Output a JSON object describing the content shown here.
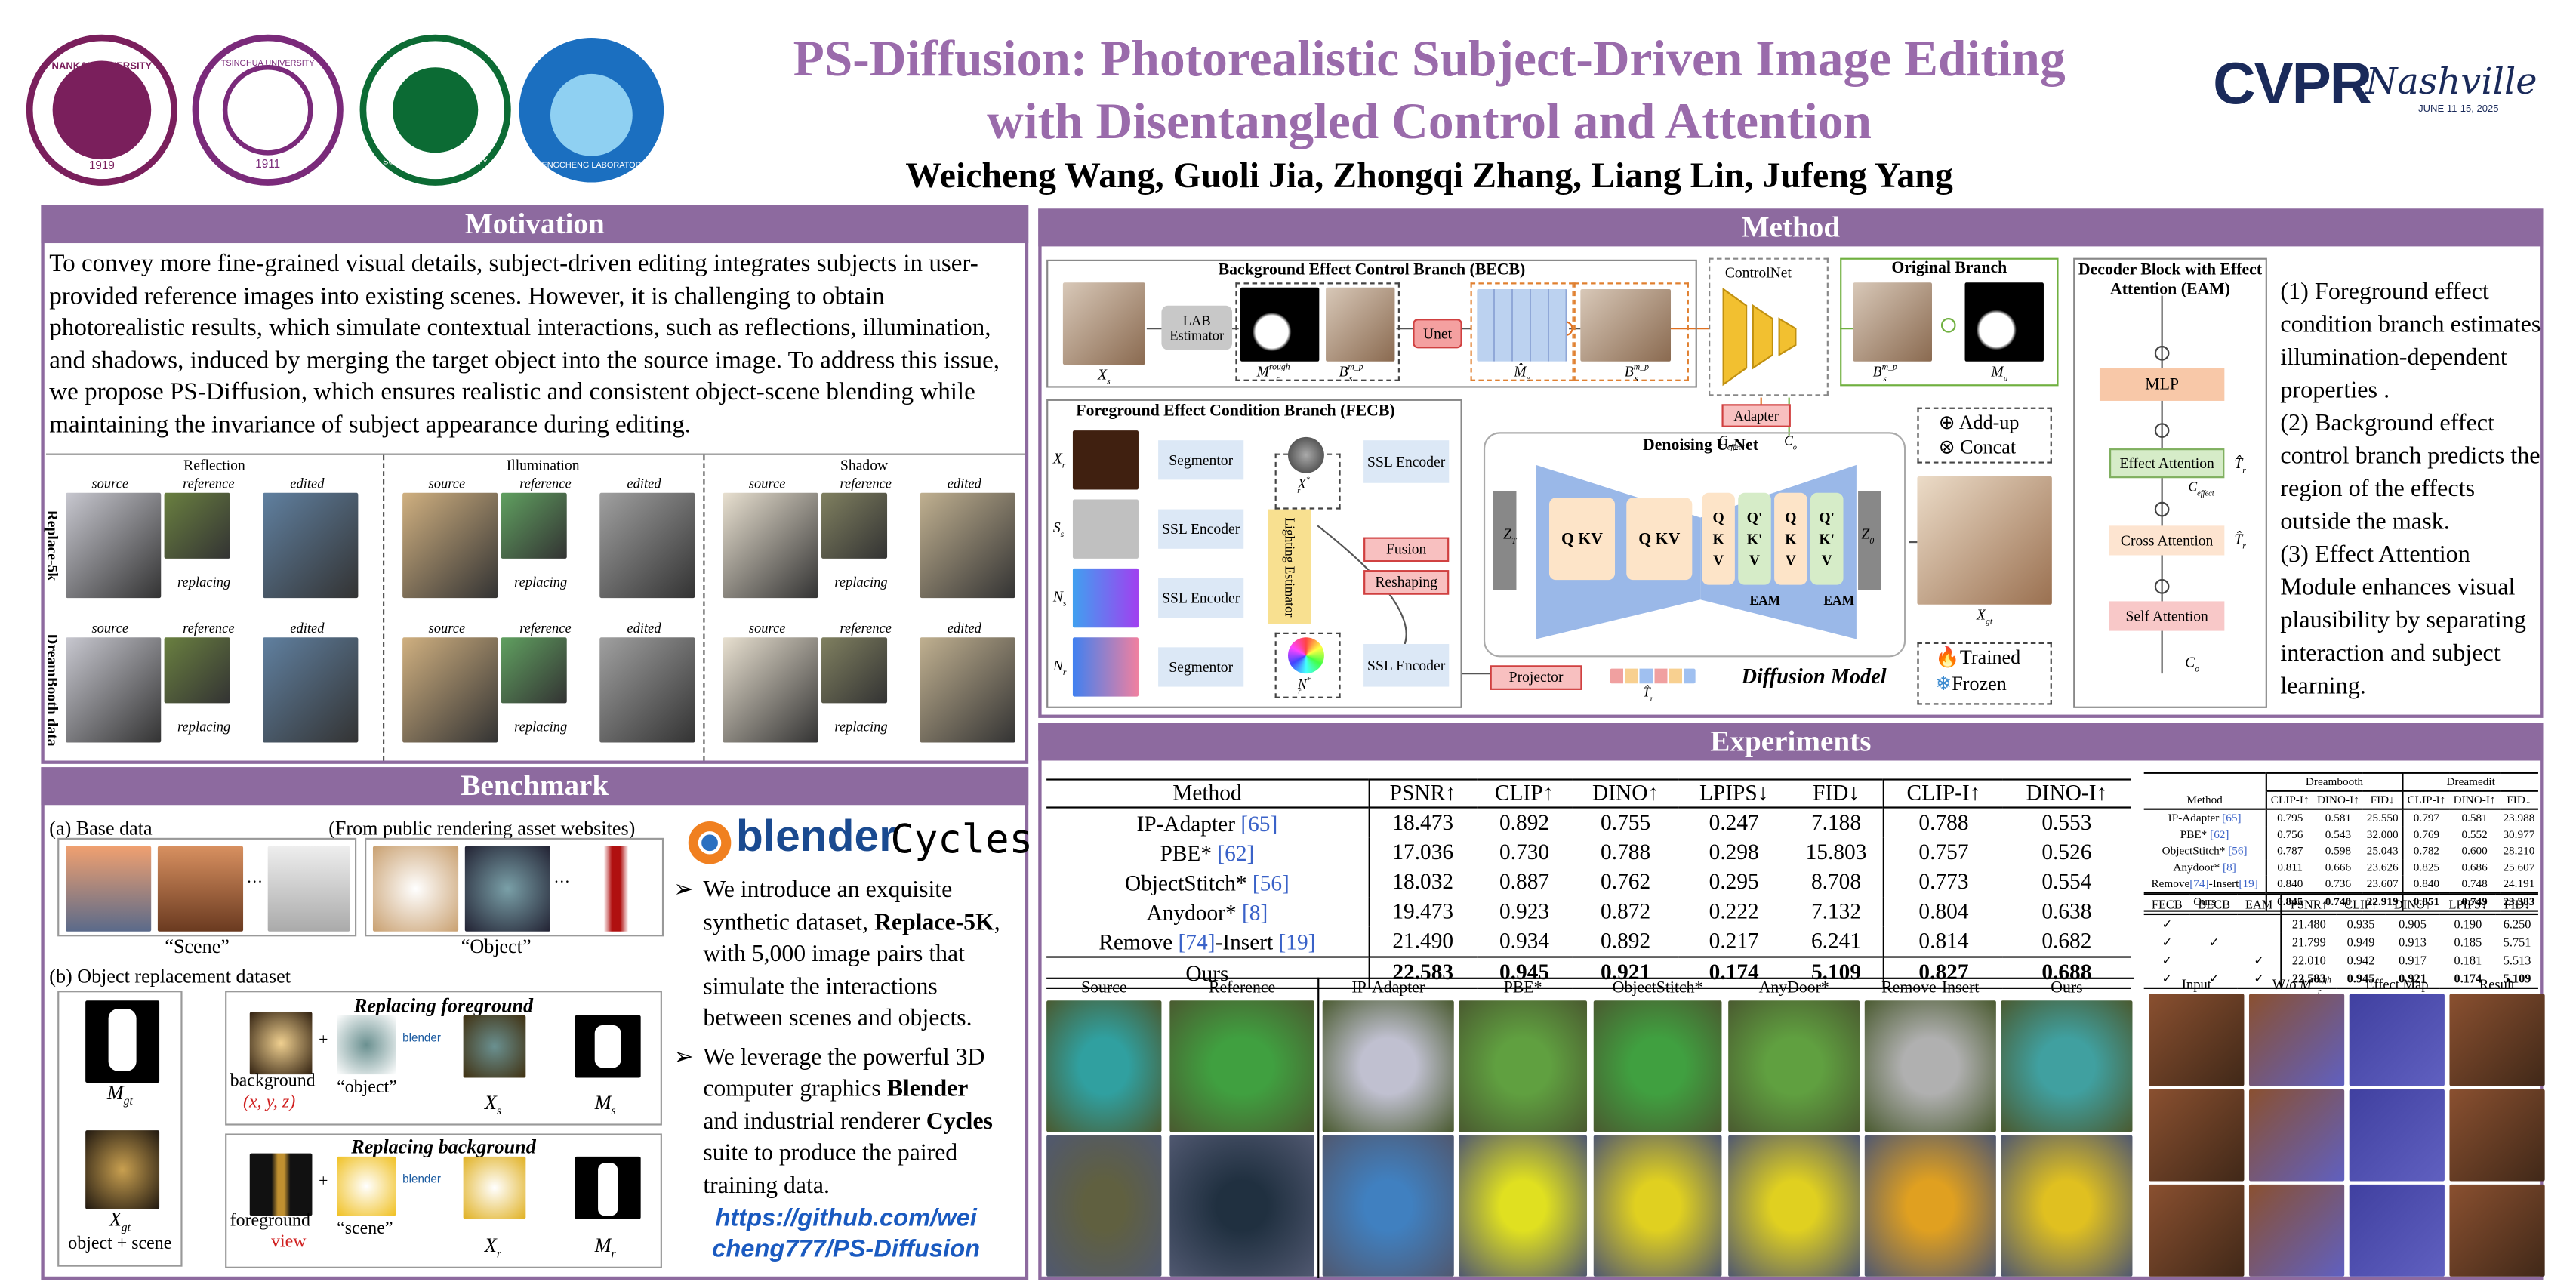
{
  "header": {
    "title_line1": "PS-Diffusion: Photorealistic Subject-Driven Image Editing",
    "title_line2": "with Disentangled Control and Attention",
    "authors": "Weicheng Wang, Guoli Jia, Zhongqi Zhang, Liang Lin, Jufeng Yang",
    "logos": [
      {
        "name": "NANKAI UNIVERSITY",
        "year": "1919"
      },
      {
        "name": "TSINGHUA UNIVERSITY",
        "year": "1911"
      },
      {
        "name": "SUN YAT-SEN UNIVERSITY"
      },
      {
        "name": "PENGCHENG LABORATORY"
      }
    ],
    "conference": {
      "name": "CVPR",
      "city": "Nashville",
      "dates": "JUNE 11-15, 2025"
    }
  },
  "motivation": {
    "heading": "Motivation",
    "text": "To convey more fine-grained visual details, subject-driven editing integrates subjects in user-provided reference images into existing scenes. However, it is challenging to obtain photorealistic results, which simulate contextual interactions, such as reflections, illumination, and shadows, induced by merging the target object into the source image. To address this issue, we propose PS-Diffusion, which ensures realistic and consistent object-scene blending while maintaining the invariance of subject appearance during editing.",
    "figure": {
      "effects": [
        "Reflection",
        "Illumination",
        "Shadow"
      ],
      "rows": [
        "Replace-5k",
        "DreamBooth data"
      ],
      "captions": [
        "source",
        "reference",
        "edited"
      ],
      "replacing": "replacing"
    }
  },
  "benchmark": {
    "heading": "Benchmark",
    "base": "(a)  Base data",
    "base_note": "(From public rendering asset websites)",
    "scene": "“Scene”",
    "object": "“Object”",
    "dots": "···",
    "dataset": "(b)  Object replacement dataset",
    "fg_title": "Replacing foreground",
    "bg_title": "Replacing background",
    "m_gt": {
      "b": "M",
      "s": "gt"
    },
    "x_gt": {
      "b": "X",
      "s": "gt"
    },
    "object_scene": "object + scene",
    "background": "background",
    "xyz": "(x, y, z)",
    "object_q": "“object”",
    "x_s": {
      "b": "X",
      "s": "s"
    },
    "m_s": {
      "b": "M",
      "s": "s"
    },
    "foreground": "foreground",
    "view": "view",
    "scene_q": "“scene”",
    "x_r": {
      "b": "X",
      "s": "r"
    },
    "m_r": {
      "b": "M",
      "s": "r"
    },
    "blender_small": "blender",
    "plus": "+",
    "brand": "blender",
    "suite": "Cycles",
    "bullets": [
      [
        "We introduce an exquisite synthetic dataset, ",
        "Replace-5K",
        ", with 5,000 image pairs that simulate the interactions between scenes and objects."
      ],
      [
        "We leverage the powerful 3D computer graphics ",
        "Blender",
        " and industrial renderer ",
        "Cycles",
        " suite to produce the paired training data."
      ]
    ],
    "link": [
      "https://github.com/wei",
      "cheng777/PS-Diffusion"
    ]
  },
  "method": {
    "heading": "Method",
    "becb": "Background Effect Control Branch (BECB)",
    "lab": "LAB Estimator",
    "unet": "Unet",
    "controlnet": "ControlNet",
    "original": "Original Branch",
    "decoder": "Decoder Block with Effect Attention (EAM)",
    "mlp": "MLP",
    "effect_attention": "Effect Attention",
    "cross_attention": "Cross Attention",
    "self_attention": "Self Attention",
    "fecb": "Foreground Effect Condition Branch (FECB)",
    "segmentor": "Segmentor",
    "ssl": "SSL Encoder",
    "lighting": "Lighting Estimator",
    "fusion": "Fusion",
    "reshaping": "Reshaping",
    "projector": "Projector",
    "denoising": "Denoising U-Net",
    "adapter": "Adapter",
    "qkv": "Q KV",
    "qkv3": "Q K V",
    "qkv3p": "Q' K' V",
    "eam": "EAM",
    "diffusion": "Diffusion Model",
    "addup": "Add-up",
    "concat": "Concat",
    "trained": "Trained",
    "frozen": "Frozen",
    "math": {
      "xs": {
        "b": "X",
        "s": "s"
      },
      "m_rough": {
        "b": "M",
        "s": "r",
        "p": "rough"
      },
      "b_s": {
        "b": "B",
        "s": "s",
        "p": "m_p"
      },
      "m_e": {
        "b": "M̂",
        "s": "e"
      },
      "m_u": {
        "b": "M",
        "s": "u"
      },
      "x_r": {
        "b": "X",
        "s": "r"
      },
      "s_s": {
        "b": "S",
        "s": "s"
      },
      "n_s": {
        "b": "N",
        "s": "s"
      },
      "n_r": {
        "b": "N",
        "s": "r"
      },
      "x_r_star": {
        "b": "X",
        "s": "r",
        "p": "*"
      },
      "n_r_star": {
        "b": "N",
        "s": "r",
        "p": "*"
      },
      "t_r": {
        "b": "T̂",
        "s": "r"
      },
      "c_effect": {
        "b": "C",
        "s": "effect"
      },
      "c_o": {
        "b": "C",
        "s": "o"
      },
      "z_t": {
        "b": "Z",
        "s": "T"
      },
      "z_0": {
        "b": "Z",
        "s": "0"
      },
      "x_gt": {
        "b": "X",
        "s": "gt"
      }
    },
    "notes": [
      "(1) Foreground effect condition branch estimates illumination-dependent properties .",
      "(2) Background effect control branch predicts the region of the effects outside the mask.",
      "(3) Effect Attention Module enhances visual plausibility by separating interaction and subject learning."
    ]
  },
  "experiments": {
    "heading": "Experiments",
    "table": {
      "columns": [
        "Method",
        "PSNR↑",
        "CLIP↑",
        "DINO↑",
        "LPIPS↓",
        "FID↓",
        "CLIP-I↑",
        "DINO-I↑"
      ],
      "rows": [
        {
          "method": [
            "IP-Adapter ",
            "[65]"
          ],
          "values": [
            "18.473",
            "0.892",
            "0.755",
            "0.247",
            "7.188",
            "0.788",
            "0.553"
          ]
        },
        {
          "method": [
            "PBE* ",
            "[62]"
          ],
          "values": [
            "17.036",
            "0.730",
            "0.788",
            "0.298",
            "15.803",
            "0.757",
            "0.526"
          ]
        },
        {
          "method": [
            "ObjectStitch* ",
            "[56]"
          ],
          "values": [
            "18.032",
            "0.887",
            "0.762",
            "0.295",
            "8.708",
            "0.773",
            "0.554"
          ]
        },
        {
          "method": [
            "Anydoor* ",
            "[8]"
          ],
          "values": [
            "19.473",
            "0.923",
            "0.872",
            "0.222",
            "7.132",
            "0.804",
            "0.638"
          ]
        },
        {
          "method": [
            "Remove ",
            "[74]",
            "-Insert ",
            "[19]"
          ],
          "values": [
            "21.490",
            "0.934",
            "0.892",
            "0.217",
            "6.241",
            "0.814",
            "0.682"
          ]
        },
        {
          "method": [
            "Ours"
          ],
          "values": [
            "22.583",
            "0.945",
            "0.921",
            "0.174",
            "5.109",
            "0.827",
            "0.688"
          ]
        }
      ]
    },
    "comparison": [
      "Source",
      "Reference",
      "IP-Adapter",
      "PBE*",
      "ObjectStitch*",
      "AnyDoor*",
      "Remove-Insert",
      "Ours"
    ],
    "side_table": {
      "groups": [
        "Dreambooth",
        "Dreamedit"
      ],
      "columns": [
        "Method",
        "CLIP-I↑",
        "DINO-I↑",
        "FID↓",
        "CLIP-I↑",
        "DINO-I↑",
        "FID↓"
      ],
      "rows": [
        {
          "method": [
            "IP-Adapter ",
            "[65]"
          ],
          "values": [
            "0.795",
            "0.581",
            "25.550",
            "0.797",
            "0.581",
            "23.988"
          ]
        },
        {
          "method": [
            "PBE* ",
            "[62]"
          ],
          "values": [
            "0.756",
            "0.543",
            "32.000",
            "0.769",
            "0.552",
            "30.977"
          ]
        },
        {
          "method": [
            "ObjectStitch* ",
            "[56]"
          ],
          "values": [
            "0.787",
            "0.598",
            "25.043",
            "0.782",
            "0.600",
            "28.210"
          ]
        },
        {
          "method": [
            "Anydoor* ",
            "[8]"
          ],
          "values": [
            "0.811",
            "0.666",
            "23.626",
            "0.825",
            "0.686",
            "25.607"
          ]
        },
        {
          "method": [
            "Remove",
            "[74]",
            "-Insert",
            "[19]"
          ],
          "values": [
            "0.840",
            "0.736",
            "23.607",
            "0.840",
            "0.748",
            "24.191"
          ]
        },
        {
          "method": [
            "Ours"
          ],
          "values": [
            "0.845",
            "0.740",
            "22.919",
            "0.851",
            "0.749",
            "23.383"
          ]
        }
      ]
    },
    "ablation": {
      "columns": [
        "FECB",
        "BECB",
        "EAM",
        "PSNR↑",
        "CLIP↑",
        "DINO↑",
        "LPIPS↓",
        "FID↓"
      ],
      "rows": [
        [
          "✓",
          null,
          null,
          "21.480",
          "0.935",
          "0.905",
          "0.190",
          "6.250"
        ],
        [
          "✓",
          "✓",
          null,
          "21.799",
          "0.949",
          "0.913",
          "0.185",
          "5.751"
        ],
        [
          "✓",
          null,
          "✓",
          "22.010",
          "0.942",
          "0.917",
          "0.181",
          "5.513"
        ],
        [
          "✓",
          "✓",
          "✓",
          "22.583",
          "0.945",
          "0.921",
          "0.174",
          "5.109"
        ]
      ]
    },
    "ablation_images": {
      "input": "Input",
      "wo": "W/o ",
      "wo_math": {
        "b": "M",
        "s": "r",
        "p": "rough"
      },
      "effect_map": "Effect Map",
      "result": "Result"
    }
  }
}
